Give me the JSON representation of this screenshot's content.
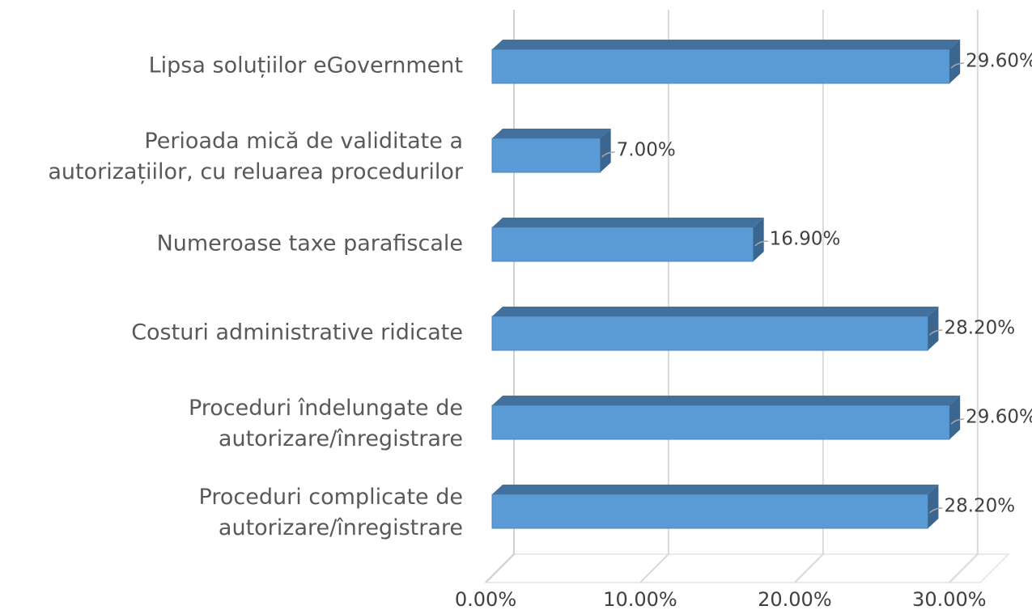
{
  "chart_data": {
    "type": "bar3d_horizontal",
    "categories": [
      "Lipsa soluțiilor eGovernment",
      "Perioada mică de validitate a\nautorizațiilor, cu reluarea procedurilor",
      "Numeroase taxe parafiscale",
      "Costuri administrative ridicate",
      "Proceduri îndelungate de\nautorizare/înregistrare",
      "Proceduri complicate de\nautorizare/înregistrare"
    ],
    "values": [
      29.6,
      7.0,
      16.9,
      28.2,
      29.6,
      28.2
    ],
    "value_labels": [
      "29.60%",
      "7.00%",
      "16.90%",
      "28.20%",
      "29.60%",
      "28.20%"
    ],
    "color": "#5b9bd5",
    "xlim": [
      0,
      32
    ],
    "xticks": [
      {
        "value": 0,
        "label": "0.00%"
      },
      {
        "value": 10,
        "label": "10.00%"
      },
      {
        "value": 20,
        "label": "20.00%"
      },
      {
        "value": 30,
        "label": "30.00%"
      }
    ],
    "grid": true
  }
}
